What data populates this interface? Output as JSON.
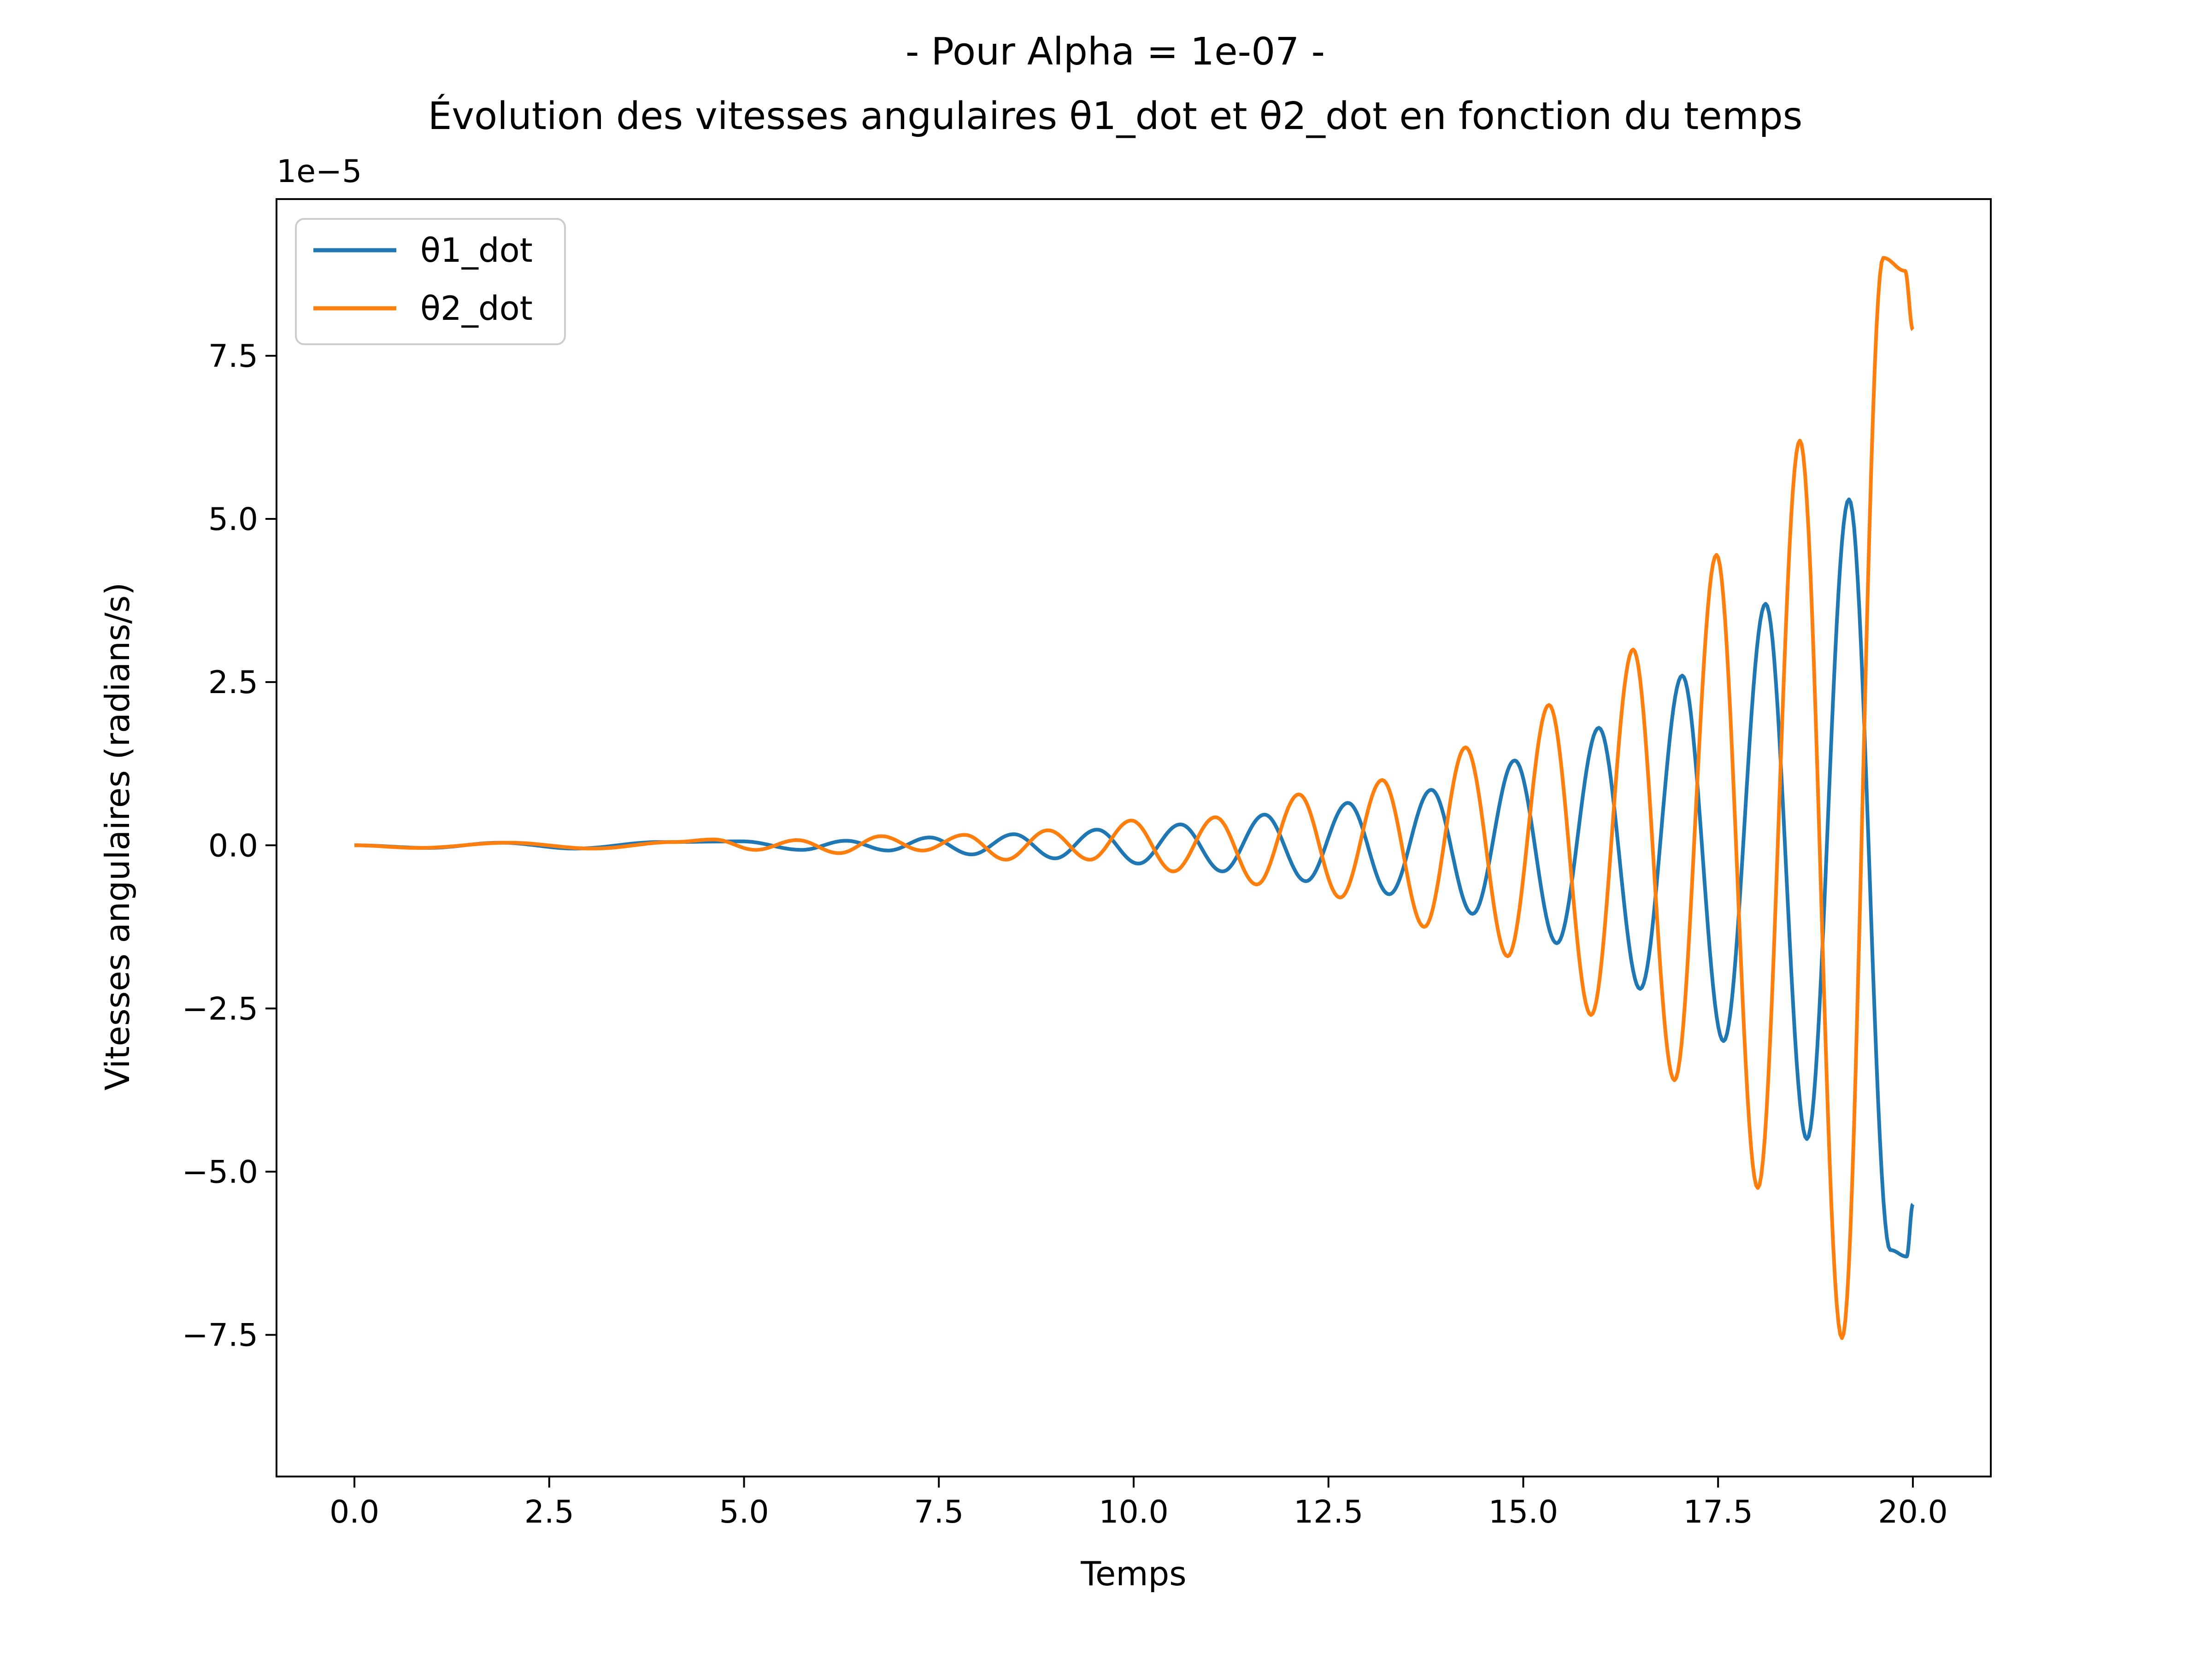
{
  "chart_data": {
    "type": "line",
    "title": "- Pour Alpha = 1e-07 -",
    "subtitle": "Évolution des vitesses angulaires θ1_dot et θ2_dot en fonction du temps",
    "xlabel": "Temps",
    "ylabel": "Vitesses angulaires (radians/s)",
    "y_offset_label": "1e−5",
    "xlim": [
      -1.0,
      21.0
    ],
    "ylim": [
      -9.67e-05,
      9.9e-05
    ],
    "xticks": [
      0.0,
      2.5,
      5.0,
      7.5,
      10.0,
      12.5,
      15.0,
      17.5,
      20.0
    ],
    "xtick_labels": [
      "0.0",
      "2.5",
      "5.0",
      "7.5",
      "10.0",
      "12.5",
      "15.0",
      "17.5",
      "20.0"
    ],
    "yticks": [
      -7.5e-05,
      -5e-05,
      -2.5e-05,
      0.0,
      2.5e-05,
      5e-05,
      7.5e-05
    ],
    "ytick_labels": [
      "−7.5",
      "−5.0",
      "−2.5",
      "0.0",
      "2.5",
      "5.0",
      "7.5"
    ],
    "grid": false,
    "legend_position": "top-left",
    "series": [
      {
        "name": "θ1_dot",
        "color": "#1f77b4",
        "x": [
          0.0,
          0.94,
          1.88,
          2.83,
          3.92,
          4.98,
          5.74,
          6.31,
          6.85,
          7.38,
          7.92,
          8.46,
          8.99,
          9.53,
          10.06,
          10.6,
          11.14,
          11.68,
          12.21,
          12.75,
          13.28,
          13.82,
          14.35,
          14.89,
          15.43,
          15.97,
          16.5,
          17.04,
          17.57,
          18.11,
          18.64,
          19.18,
          19.71,
          19.92,
          20.0
        ],
        "y": [
          0.0,
          -4e-07,
          4e-07,
          -5e-07,
          5e-07,
          6e-07,
          -7e-07,
          7e-07,
          -8e-07,
          1.2e-06,
          -1.4e-06,
          1.7e-06,
          -2e-06,
          2.4e-06,
          -2.8e-06,
          3.2e-06,
          -4e-06,
          4.7e-06,
          -5.5e-06,
          6.5e-06,
          -7.5e-06,
          8.5e-06,
          -1.05e-05,
          1.3e-05,
          -1.5e-05,
          1.8e-05,
          -2.2e-05,
          2.6e-05,
          -3e-05,
          3.7e-05,
          -4.5e-05,
          5.3e-05,
          -6.2e-05,
          -6.3e-05,
          -5.5e-05
        ]
      },
      {
        "name": "θ2_dot",
        "color": "#ff7f0e",
        "x": [
          0.0,
          0.82,
          1.98,
          3.07,
          4.1,
          4.61,
          5.15,
          5.68,
          6.22,
          6.76,
          7.29,
          7.83,
          8.36,
          8.9,
          9.44,
          9.97,
          10.51,
          11.05,
          11.58,
          12.12,
          12.65,
          13.19,
          13.73,
          14.26,
          14.8,
          15.33,
          15.87,
          16.41,
          16.94,
          17.48,
          18.01,
          18.55,
          19.09,
          19.62,
          19.9,
          20.0
        ],
        "y": [
          0.0,
          -4e-07,
          4e-07,
          -5e-07,
          5e-07,
          9e-07,
          -7e-07,
          8e-07,
          -1.2e-06,
          1.4e-06,
          -8e-07,
          1.6e-06,
          -2.2e-06,
          2.3e-06,
          -2.2e-06,
          3.8e-06,
          -4e-06,
          4.3e-06,
          -6e-06,
          7.8e-06,
          -8e-06,
          1e-05,
          -1.25e-05,
          1.5e-05,
          -1.7e-05,
          2.15e-05,
          -2.6e-05,
          3e-05,
          -3.6e-05,
          4.45e-05,
          -5.25e-05,
          6.2e-05,
          -7.55e-05,
          9e-05,
          8.8e-05,
          7.9e-05
        ]
      }
    ]
  }
}
